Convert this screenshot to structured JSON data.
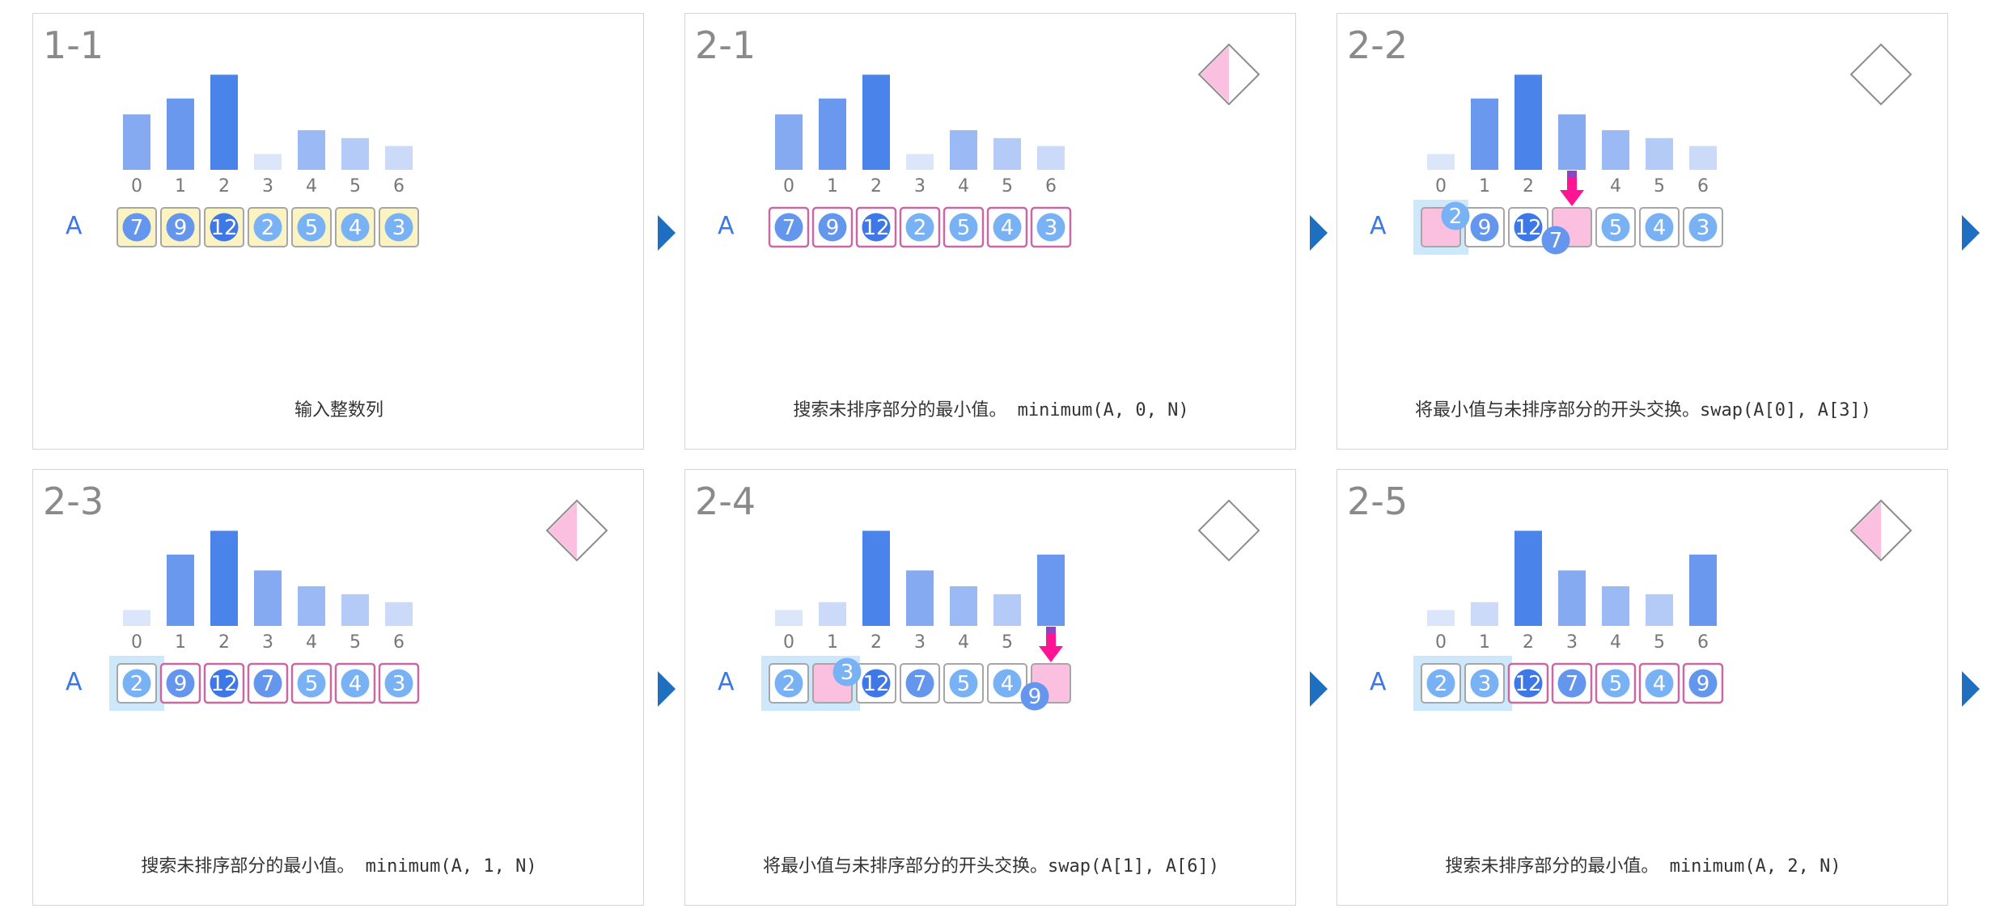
{
  "array_name": "A",
  "indices": [
    "0",
    "1",
    "2",
    "3",
    "4",
    "5",
    "6"
  ],
  "colors": {
    "bar_levels": [
      "#dbe6fb",
      "#cbdaf9",
      "#b4cbf7",
      "#9bb9f4",
      "#86aaf1",
      "#6a98ee",
      "#4a84ea"
    ],
    "dark": "#3d78e6",
    "mid": "#6496ee",
    "light": "#79b2f4",
    "pink_fill": "#fbbfe0",
    "pink_border": "#c869a4",
    "yellow_fill": "#fcf3c2",
    "gray_border": "#a6a6a6",
    "sorted_region": "#cde8fa",
    "swap_arrow": "#ff1493",
    "next_arrow": "#1f6fc0"
  },
  "panels": [
    {
      "title": "1-1",
      "caption": "输入整数列",
      "diamond": "none",
      "values": [
        7,
        9,
        12,
        2,
        5,
        4,
        3
      ],
      "bars": [
        7,
        9,
        12,
        2,
        5,
        4,
        3
      ],
      "cells": [
        {
          "value": "7",
          "style": "yellow"
        },
        {
          "value": "9",
          "style": "yellow"
        },
        {
          "value": "12",
          "style": "yellow"
        },
        {
          "value": "2",
          "style": "yellow"
        },
        {
          "value": "5",
          "style": "yellow"
        },
        {
          "value": "4",
          "style": "yellow"
        },
        {
          "value": "3",
          "style": "yellow"
        }
      ],
      "sorted_count": 0
    },
    {
      "title": "2-1",
      "caption": "搜索未排序部分的最小值。 minimum(A, 0, N)",
      "diamond": "half",
      "bars": [
        7,
        9,
        12,
        2,
        5,
        4,
        3
      ],
      "cells": [
        {
          "value": "7",
          "style": "pink"
        },
        {
          "value": "9",
          "style": "pink"
        },
        {
          "value": "12",
          "style": "pink"
        },
        {
          "value": "2",
          "style": "pink"
        },
        {
          "value": "5",
          "style": "pink"
        },
        {
          "value": "4",
          "style": "pink"
        },
        {
          "value": "3",
          "style": "pink"
        }
      ],
      "sorted_count": 0
    },
    {
      "title": "2-2",
      "caption": "将最小值与未排序部分的开头交换。swap(A[0], A[3])",
      "diamond": "empty",
      "bars": [
        2,
        9,
        12,
        7,
        5,
        4,
        3
      ],
      "cells": [
        {
          "value": "",
          "style": "pinkfill"
        },
        {
          "value": "9",
          "style": "gray"
        },
        {
          "value": "12",
          "style": "gray"
        },
        {
          "value": "",
          "style": "pinkfill"
        },
        {
          "value": "5",
          "style": "gray"
        },
        {
          "value": "4",
          "style": "gray"
        },
        {
          "value": "3",
          "style": "gray"
        }
      ],
      "sorted_count": 1,
      "swap": {
        "from": 3,
        "to": 0,
        "value_to": "2",
        "value_from": "7"
      }
    },
    {
      "title": "2-3",
      "caption": "搜索未排序部分的最小值。 minimum(A, 1, N)",
      "diamond": "half",
      "bars": [
        2,
        9,
        12,
        7,
        5,
        4,
        3
      ],
      "cells": [
        {
          "value": "2",
          "style": "gray"
        },
        {
          "value": "9",
          "style": "pink"
        },
        {
          "value": "12",
          "style": "pink"
        },
        {
          "value": "7",
          "style": "pink"
        },
        {
          "value": "5",
          "style": "pink"
        },
        {
          "value": "4",
          "style": "pink"
        },
        {
          "value": "3",
          "style": "pink"
        }
      ],
      "sorted_count": 1
    },
    {
      "title": "2-4",
      "caption": "将最小值与未排序部分的开头交换。swap(A[1], A[6])",
      "diamond": "empty",
      "bars": [
        2,
        3,
        12,
        7,
        5,
        4,
        9
      ],
      "cells": [
        {
          "value": "2",
          "style": "gray"
        },
        {
          "value": "",
          "style": "pinkfill"
        },
        {
          "value": "12",
          "style": "gray"
        },
        {
          "value": "7",
          "style": "gray"
        },
        {
          "value": "5",
          "style": "gray"
        },
        {
          "value": "4",
          "style": "gray"
        },
        {
          "value": "",
          "style": "pinkfill"
        }
      ],
      "sorted_count": 2,
      "swap": {
        "from": 6,
        "to": 1,
        "value_to": "3",
        "value_from": "9"
      }
    },
    {
      "title": "2-5",
      "caption": "搜索未排序部分的最小值。 minimum(A, 2, N)",
      "diamond": "half",
      "bars": [
        2,
        3,
        12,
        7,
        5,
        4,
        9
      ],
      "cells": [
        {
          "value": "2",
          "style": "gray"
        },
        {
          "value": "3",
          "style": "gray"
        },
        {
          "value": "12",
          "style": "pink"
        },
        {
          "value": "7",
          "style": "pink"
        },
        {
          "value": "5",
          "style": "pink"
        },
        {
          "value": "4",
          "style": "pink"
        },
        {
          "value": "9",
          "style": "pink"
        }
      ],
      "sorted_count": 2
    }
  ]
}
